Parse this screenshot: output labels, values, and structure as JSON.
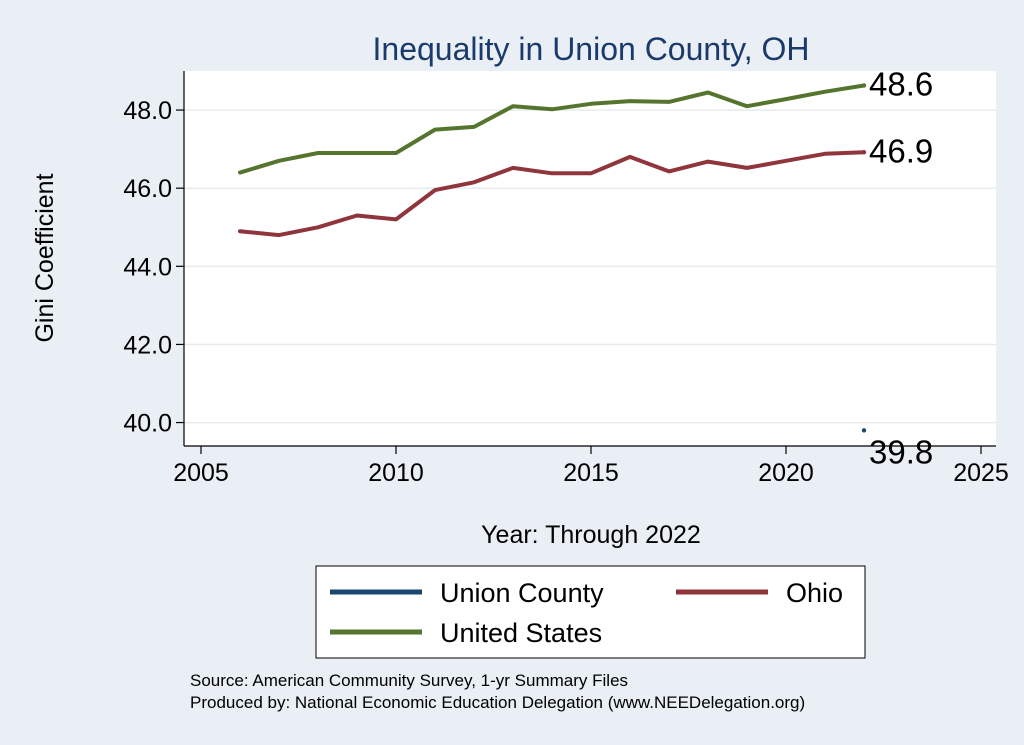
{
  "chart_data": {
    "type": "line",
    "title": "Inequality in Union County, OH",
    "xlabel": "Year: Through 2022",
    "ylabel": "Gini Coefficient",
    "xlim": [
      2005,
      2025
    ],
    "ylim": [
      39.4,
      49.0
    ],
    "x_ticks": [
      2005,
      2010,
      2015,
      2020,
      2025
    ],
    "x_tick_labels": [
      "2005",
      "2010",
      "2015",
      "2020",
      "2025"
    ],
    "y_ticks": [
      40,
      42,
      44,
      46,
      48
    ],
    "y_tick_labels": [
      "40.0",
      "42.0",
      "44.0",
      "46.0",
      "48.0"
    ],
    "grid": true,
    "legend_position": "bottom",
    "series": [
      {
        "name": "Union County",
        "color": "#1a476f",
        "x": [
          2022
        ],
        "values": [
          39.8
        ],
        "end_label": "39.8"
      },
      {
        "name": "Ohio",
        "color": "#90353b",
        "x": [
          2006,
          2007,
          2008,
          2009,
          2010,
          2011,
          2012,
          2013,
          2014,
          2015,
          2016,
          2017,
          2018,
          2019,
          2020,
          2021,
          2022
        ],
        "values": [
          44.9,
          44.8,
          45.0,
          45.3,
          45.2,
          45.95,
          46.15,
          46.52,
          46.38,
          46.38,
          46.8,
          46.43,
          46.68,
          46.52,
          46.7,
          46.88,
          46.92
        ],
        "end_label": "46.9"
      },
      {
        "name": "United States",
        "color": "#55752f",
        "x": [
          2006,
          2007,
          2008,
          2009,
          2010,
          2011,
          2012,
          2013,
          2014,
          2015,
          2016,
          2017,
          2018,
          2019,
          2020,
          2021,
          2022
        ],
        "values": [
          46.4,
          46.7,
          46.9,
          46.9,
          46.9,
          47.5,
          47.57,
          48.1,
          48.02,
          48.16,
          48.23,
          48.21,
          48.45,
          48.1,
          48.28,
          48.47,
          48.63
        ],
        "end_label": "48.6"
      }
    ],
    "source_lines": [
      "Source: American Community Survey, 1-yr Summary Files",
      "Produced by: National Economic Education Delegation (www.NEEDelegation.org)"
    ]
  }
}
